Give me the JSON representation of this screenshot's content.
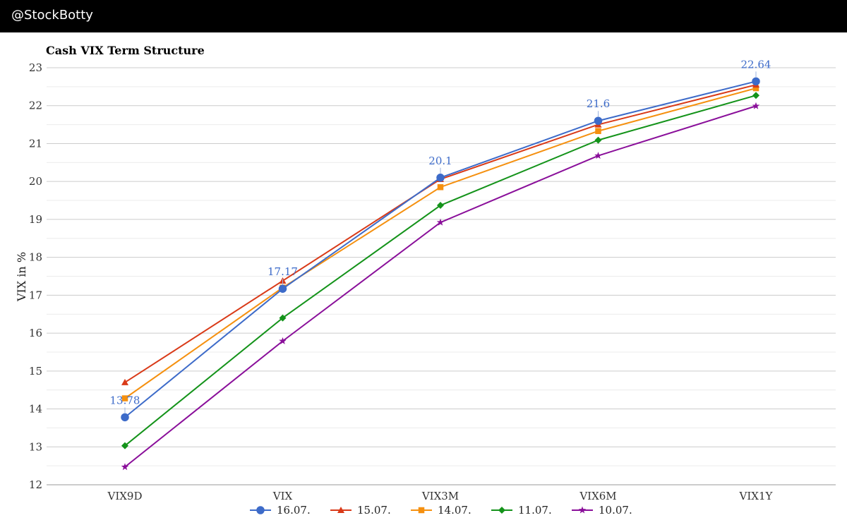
{
  "header": {
    "handle": "@StockBotty"
  },
  "chart_data": {
    "type": "line",
    "title": "Cash VIX Term Structure",
    "xlabel": "",
    "ylabel": "VIX in %",
    "categories": [
      "VIX9D",
      "VIX",
      "VIX3M",
      "VIX6M",
      "VIX1Y"
    ],
    "ylim": [
      12,
      23
    ],
    "yticks": [
      12,
      13,
      14,
      15,
      16,
      17,
      18,
      19,
      20,
      21,
      22,
      23
    ],
    "grid": true,
    "legend_position": "bottom",
    "series": [
      {
        "name": "16.07.",
        "color": "#3d6bc9",
        "marker": "circle",
        "values": [
          13.78,
          17.17,
          20.1,
          21.6,
          22.64
        ]
      },
      {
        "name": "15.07.",
        "color": "#d93a18",
        "marker": "triangle",
        "values": [
          14.7,
          17.38,
          20.06,
          21.5,
          22.55
        ]
      },
      {
        "name": "14.07.",
        "color": "#f5900f",
        "marker": "square",
        "values": [
          14.28,
          17.2,
          19.85,
          21.33,
          22.46
        ]
      },
      {
        "name": "11.07.",
        "color": "#14931a",
        "marker": "diamond",
        "values": [
          13.03,
          16.4,
          19.37,
          21.09,
          22.27
        ]
      },
      {
        "name": "10.07.",
        "color": "#8a0f9a",
        "marker": "star",
        "values": [
          12.47,
          15.79,
          18.92,
          20.68,
          21.99
        ]
      }
    ],
    "data_labels": {
      "series": "16.07.",
      "values": [
        "13.78",
        "17.17",
        "20.1",
        "21.6",
        "22.64"
      ]
    }
  }
}
